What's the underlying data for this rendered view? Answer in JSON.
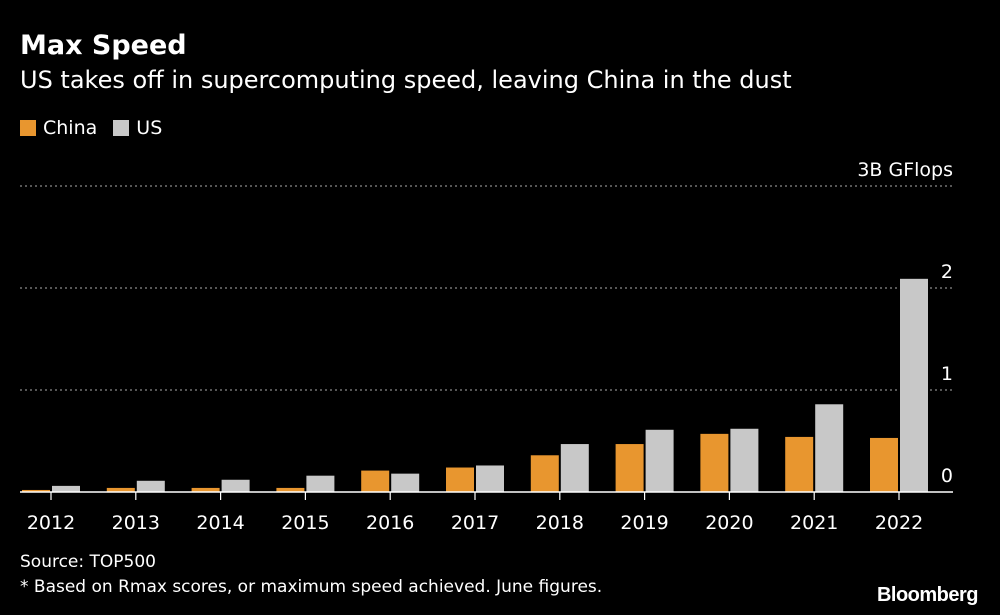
{
  "header": {
    "title": "Max Speed",
    "subtitle": "US takes off in supercomputing speed, leaving China in the dust"
  },
  "legend": {
    "items": [
      {
        "label": "China",
        "color": "#e8962f"
      },
      {
        "label": "US",
        "color": "#c8c8c8"
      }
    ]
  },
  "footer": {
    "source": "Source: TOP500",
    "note": "* Based on Rmax scores, or maximum speed achieved. June figures.",
    "brand": "Bloomberg"
  },
  "chart_data": {
    "type": "bar",
    "categories": [
      "2012",
      "2013",
      "2014",
      "2015",
      "2016",
      "2017",
      "2018",
      "2019",
      "2020",
      "2021",
      "2022"
    ],
    "series": [
      {
        "name": "China",
        "color": "#e8962f",
        "values": [
          0.02,
          0.04,
          0.04,
          0.04,
          0.21,
          0.24,
          0.36,
          0.47,
          0.57,
          0.54,
          0.53
        ]
      },
      {
        "name": "US",
        "color": "#c8c8c8",
        "values": [
          0.06,
          0.11,
          0.12,
          0.16,
          0.18,
          0.26,
          0.47,
          0.61,
          0.62,
          0.86,
          2.09
        ]
      }
    ],
    "ylim": [
      0,
      3
    ],
    "yticks": [
      {
        "value": 0,
        "label": "0"
      },
      {
        "value": 1,
        "label": "1"
      },
      {
        "value": 2,
        "label": "2"
      },
      {
        "value": 3,
        "label": "3B GFlops"
      }
    ],
    "grid": true,
    "legend_position": "top-left"
  }
}
